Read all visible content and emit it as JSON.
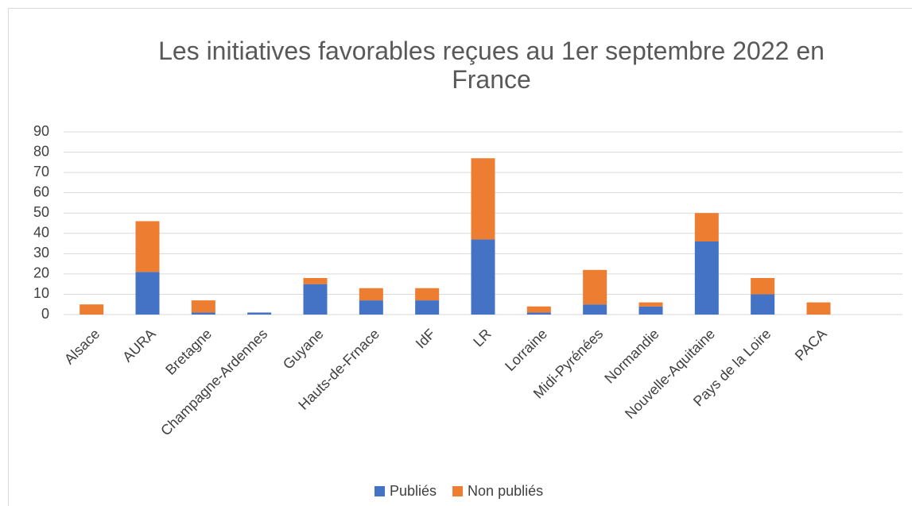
{
  "chart_data": {
    "type": "bar",
    "stacked": true,
    "title": "Les initiatives favorables reçues au 1er septembre 2022 en France",
    "categories": [
      "Alsace",
      "AURA",
      "Bretagne",
      "Champagne-Ardennes",
      "Guyane",
      "Hauts-de-Frnace",
      "IdF",
      "LR",
      "Lorraine",
      "Midi-Pyrénées",
      "Normandie",
      "Nouvelle-Aquitaine",
      "Pays de la Loire",
      "PACA",
      null
    ],
    "series": [
      {
        "name": "Publiés",
        "color": "#4472c4",
        "values": [
          0,
          21,
          1,
          1,
          15,
          7,
          7,
          37,
          1,
          5,
          4,
          36,
          10,
          0,
          null
        ]
      },
      {
        "name": "Non publiés",
        "color": "#ed7d31",
        "values": [
          5,
          25,
          6,
          0,
          3,
          6,
          6,
          40,
          3,
          17,
          2,
          14,
          8,
          6,
          null
        ]
      }
    ],
    "ylim": [
      0,
      90
    ],
    "yticks": [
      0,
      10,
      20,
      30,
      40,
      50,
      60,
      70,
      80,
      90
    ],
    "grid": true,
    "legend": "bottom"
  }
}
